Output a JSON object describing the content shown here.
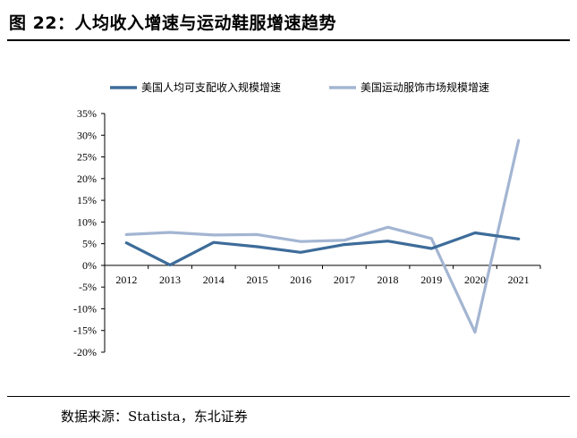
{
  "figure": {
    "title": "图 22：人均收入增速与运动鞋服增速趋势",
    "source": "数据来源：Statista，东北证券"
  },
  "chart_data": {
    "type": "line",
    "x": [
      "2012",
      "2013",
      "2014",
      "2015",
      "2016",
      "2017",
      "2018",
      "2019",
      "2020",
      "2021"
    ],
    "series": [
      {
        "name": "美国人均可支配收入规模增速",
        "color": "#3d6c99",
        "values": [
          5.2,
          0.1,
          5.3,
          4.3,
          3.0,
          4.8,
          5.6,
          3.9,
          7.5,
          6.1
        ]
      },
      {
        "name": "美国运动服饰市场规模增速",
        "color": "#a3b5d2",
        "values": [
          7.1,
          7.6,
          7.0,
          7.1,
          5.5,
          5.8,
          8.8,
          6.2,
          -15.4,
          28.8
        ]
      }
    ],
    "yticks": [
      "35%",
      "30%",
      "25%",
      "20%",
      "15%",
      "10%",
      "5%",
      "0%",
      "-5%",
      "-10%",
      "-15%",
      "-20%"
    ],
    "ylim": [
      -20,
      35
    ],
    "legend": "top",
    "grid": false
  }
}
